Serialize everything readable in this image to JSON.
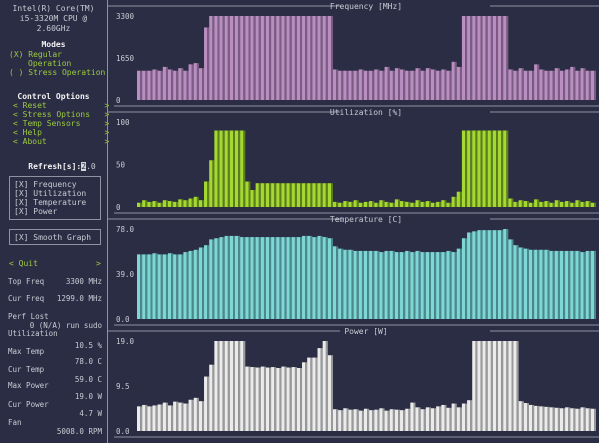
{
  "cpu": {
    "line1": "Intel(R) Core(TM)",
    "line2": "i5-3320M CPU @",
    "line3": "2.60GHz"
  },
  "modes": {
    "title": "Modes",
    "regular_a": "(X) Regular",
    "regular_b": "Operation",
    "stress": "( ) Stress Operation"
  },
  "control": {
    "title": "Control Options",
    "items": [
      "< Reset            >",
      "< Stress Options   >",
      "< Temp Sensors     >",
      "< Help             >",
      "< About            >"
    ]
  },
  "refresh": {
    "label": "Refresh[s]:",
    "cursor": "2",
    "rest": ".0"
  },
  "graph_toggles": [
    "[X] Frequency",
    "[X] Utilization",
    "[X] Temperature",
    "[X] Power"
  ],
  "smooth": "[X] Smooth Graph",
  "quit": {
    "label": "< Quit",
    "right": ">"
  },
  "stats": [
    {
      "k": "Top Freq",
      "v": "3300 MHz"
    },
    {
      "k": "Cur Freq",
      "v": "1299.0 MHz"
    },
    {
      "k": "Perf Lost",
      "v": ""
    },
    {
      "k": "",
      "v": "0 (N/A) run sudo"
    },
    {
      "k": "Utilization",
      "v": ""
    },
    {
      "k": "",
      "v": "10.5 %"
    },
    {
      "k": "Max Temp",
      "v": ""
    },
    {
      "k": "",
      "v": "78.0 C"
    },
    {
      "k": "Cur Temp",
      "v": ""
    },
    {
      "k": "",
      "v": "59.0 C"
    },
    {
      "k": "Max Power",
      "v": ""
    },
    {
      "k": "",
      "v": "19.0 W"
    },
    {
      "k": "Cur Power",
      "v": ""
    },
    {
      "k": "",
      "v": "4.7 W"
    },
    {
      "k": "Fan",
      "v": ""
    },
    {
      "k": "",
      "v": "5008.0 RPM"
    }
  ],
  "graphs": [
    {
      "title": "Frequency [MHz]",
      "ticks": [
        "3300",
        "1650",
        "0"
      ],
      "max": 3300,
      "color": "#b98ec0",
      "dark": "#7c5c83",
      "values": [
        1150,
        1150,
        1150,
        1200,
        1150,
        1300,
        1200,
        1150,
        1250,
        1150,
        1400,
        1450,
        1250,
        2850,
        3300,
        3300,
        3300,
        3300,
        3300,
        3300,
        3300,
        3300,
        3300,
        3300,
        3300,
        3300,
        3300,
        3300,
        3300,
        3300,
        3300,
        3300,
        3300,
        3300,
        3300,
        3300,
        3300,
        3300,
        1200,
        1150,
        1150,
        1150,
        1150,
        1200,
        1150,
        1150,
        1200,
        1150,
        1300,
        1150,
        1250,
        1200,
        1150,
        1150,
        1250,
        1150,
        1250,
        1200,
        1150,
        1200,
        1150,
        1500,
        1300,
        3300,
        3300,
        3300,
        3300,
        3300,
        3300,
        3300,
        3300,
        3300,
        1200,
        1150,
        1250,
        1150,
        1150,
        1400,
        1200,
        1150,
        1150,
        1250,
        1150,
        1200,
        1300,
        1150,
        1250,
        1150,
        1150
      ]
    },
    {
      "title": "Utilization [%]",
      "ticks": [
        "100",
        "50",
        "0"
      ],
      "max": 100,
      "color": "#a3d930",
      "dark": "#5e7e1c",
      "values": [
        5,
        8,
        6,
        7,
        5,
        8,
        7,
        6,
        9,
        8,
        10,
        12,
        8,
        30,
        55,
        90,
        90,
        90,
        90,
        90,
        90,
        30,
        20,
        28,
        28,
        28,
        28,
        28,
        28,
        28,
        28,
        28,
        28,
        28,
        28,
        28,
        28,
        28,
        6,
        5,
        7,
        6,
        8,
        5,
        6,
        7,
        5,
        8,
        6,
        5,
        9,
        7,
        6,
        5,
        8,
        6,
        7,
        5,
        6,
        8,
        5,
        12,
        18,
        90,
        90,
        90,
        90,
        90,
        90,
        90,
        90,
        90,
        10,
        6,
        8,
        7,
        5,
        9,
        6,
        7,
        5,
        8,
        6,
        7,
        5,
        8,
        6,
        7,
        5
      ]
    },
    {
      "title": "Temperature [C]",
      "ticks": [
        "78.0",
        "39.0",
        "0.0"
      ],
      "max": 78,
      "color": "#7fd6d7",
      "dark": "#4a8a8b",
      "values": [
        56,
        56,
        56,
        57,
        56,
        56,
        57,
        56,
        56,
        58,
        59,
        60,
        62,
        64,
        69,
        70,
        71,
        72,
        72,
        72,
        71,
        71,
        71,
        71,
        71,
        71,
        71,
        71,
        71,
        71,
        71,
        71,
        72,
        72,
        71,
        72,
        71,
        70,
        63,
        61,
        60,
        60,
        59,
        59,
        59,
        59,
        59,
        58,
        59,
        59,
        58,
        58,
        59,
        58,
        59,
        58,
        58,
        58,
        58,
        58,
        59,
        58,
        61,
        70,
        75,
        76,
        77,
        77,
        77,
        77,
        77,
        78,
        69,
        64,
        62,
        61,
        60,
        60,
        60,
        60,
        59,
        59,
        59,
        59,
        59,
        59,
        58,
        59,
        59
      ]
    },
    {
      "title": "Power [W]",
      "ticks": [
        "19.0",
        "9.5",
        "0.0"
      ],
      "max": 19,
      "color": "#ebebeb",
      "dark": "#9a9a9a",
      "values": [
        5.2,
        5.5,
        5.2,
        5.4,
        5.6,
        6.0,
        5.4,
        6.2,
        6.0,
        5.8,
        6.6,
        7.0,
        6.3,
        11.5,
        14,
        19,
        19,
        19,
        19,
        19,
        19,
        13.6,
        13.5,
        13.4,
        13.6,
        13.4,
        13.5,
        13.3,
        13.6,
        13.4,
        13.5,
        13.3,
        14.5,
        15.5,
        15.5,
        17.5,
        19,
        16,
        4.6,
        4.4,
        4.8,
        4.5,
        4.6,
        4.3,
        4.7,
        4.4,
        4.5,
        4.8,
        4.3,
        4.6,
        4.5,
        4.4,
        4.7,
        6,
        5,
        4.6,
        5,
        4.8,
        5.2,
        5.5,
        4.9,
        5.8,
        5,
        5.8,
        6.5,
        19,
        19,
        19,
        19,
        19,
        19,
        19,
        19,
        19,
        6.3,
        5.9,
        5.5,
        5.3,
        5.2,
        5.1,
        5.0,
        4.9,
        4.8,
        5.0,
        4.8,
        4.7,
        5.0,
        4.8,
        4.7
      ]
    }
  ]
}
